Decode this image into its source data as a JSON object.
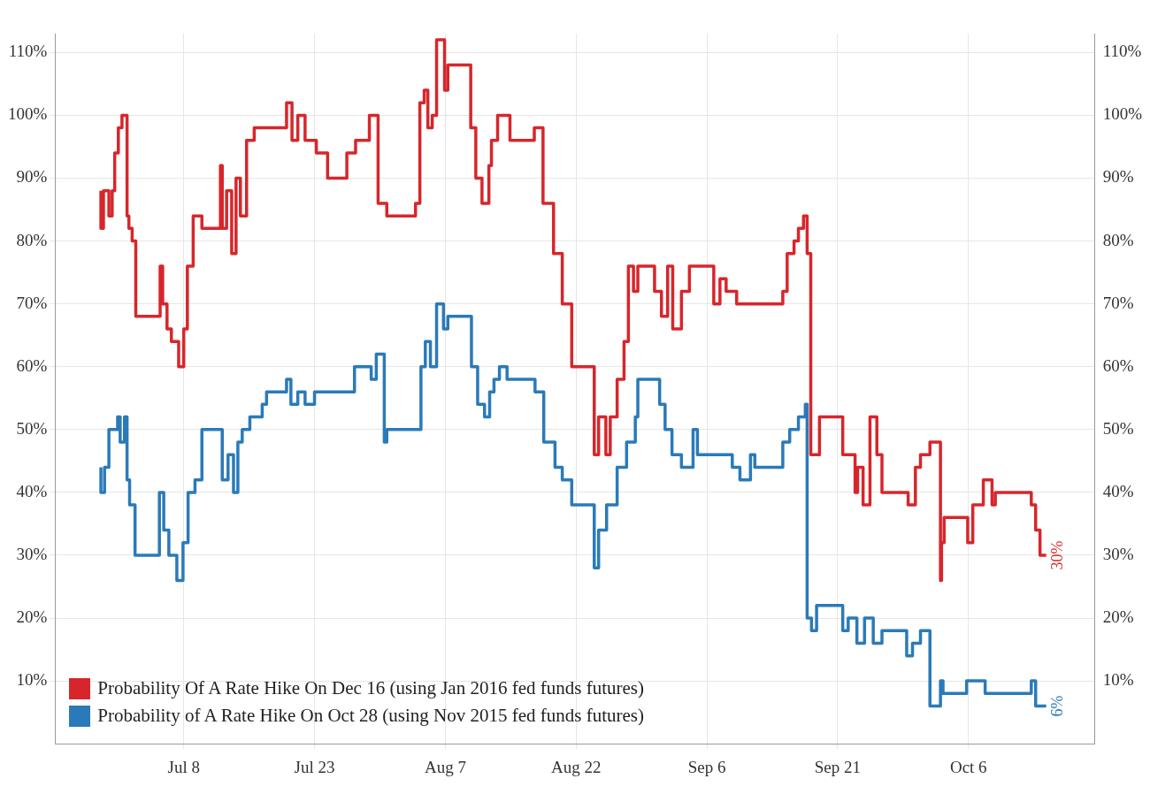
{
  "chart_data": {
    "type": "step",
    "marker": "none",
    "line_style": "solid",
    "grid": true,
    "legend": "bottom left",
    "xlim": [
      "2015-06-23T06:00",
      "2015-10-20T12:00"
    ],
    "xticks": [
      {
        "value": "2015-07-08",
        "label": "Jul 8"
      },
      {
        "value": "2015-07-23",
        "label": "Jul 23"
      },
      {
        "value": "2015-08-07",
        "label": "Aug 7"
      },
      {
        "value": "2015-08-22",
        "label": "Aug 22"
      },
      {
        "value": "2015-09-06",
        "label": "Sep 6"
      },
      {
        "value": "2015-09-21",
        "label": "Sep 21"
      },
      {
        "value": "2015-10-06",
        "label": "Oct 6"
      }
    ],
    "ylim": [
      0,
      113
    ],
    "yticks": [
      {
        "value": 10,
        "label": "10%"
      },
      {
        "value": 20,
        "label": "20%"
      },
      {
        "value": 30,
        "label": "30%"
      },
      {
        "value": 40,
        "label": "40%"
      },
      {
        "value": 50,
        "label": "50%"
      },
      {
        "value": 60,
        "label": "60%"
      },
      {
        "value": 70,
        "label": "70%"
      },
      {
        "value": 80,
        "label": "80%"
      },
      {
        "value": 90,
        "label": "90%"
      },
      {
        "value": 100,
        "label": "100%"
      },
      {
        "value": 110,
        "label": "110%"
      }
    ],
    "y2lim": [
      0,
      113
    ],
    "y2ticks": [
      {
        "value": 10,
        "label": "10%"
      },
      {
        "value": 20,
        "label": "20%"
      },
      {
        "value": 30,
        "label": "30%"
      },
      {
        "value": 40,
        "label": "40%"
      },
      {
        "value": 50,
        "label": "50%"
      },
      {
        "value": 60,
        "label": "60%"
      },
      {
        "value": 70,
        "label": "70%"
      },
      {
        "value": 80,
        "label": "80%"
      },
      {
        "value": 90,
        "label": "90%"
      },
      {
        "value": 100,
        "label": "100%"
      },
      {
        "value": 110,
        "label": "110%"
      }
    ],
    "series": [
      {
        "name": "Probability Of A Rate Hike On Dec 16 (using Jan 2016 fed funds futures)",
        "color": "#d7262b",
        "x": [
          "2015-06-28T12:00",
          "2015-06-28T19:00",
          "2015-06-29T10:00",
          "2015-06-29T19:00",
          "2015-06-30T02:00",
          "2015-06-30T12:00",
          "2015-06-30T22:00",
          "2015-07-01T12:00",
          "2015-07-01T17:00",
          "2015-07-02T02:00",
          "2015-07-02T12:00",
          "2015-07-05T07:00",
          "2015-07-05T14:00",
          "2015-07-06T02:00",
          "2015-07-06T14:00",
          "2015-07-07T10:00",
          "2015-07-08T00:00",
          "2015-07-08T10:00",
          "2015-07-09T02:00",
          "2015-07-09T14:00",
          "2015-07-10T02:00",
          "2015-07-12T05:00",
          "2015-07-12T10:00",
          "2015-07-12T22:00",
          "2015-07-13T12:00",
          "2015-07-14T00:00",
          "2015-07-14T12:00",
          "2015-07-15T05:00",
          "2015-07-16T02:00",
          "2015-07-19T19:00",
          "2015-07-20T10:00",
          "2015-07-21T02:00",
          "2015-07-21T22:00",
          "2015-07-23T05:00",
          "2015-07-24T12:00",
          "2015-07-26T17:00",
          "2015-07-27T17:00",
          "2015-07-29T07:00",
          "2015-07-30T07:00",
          "2015-07-31T07:00",
          "2015-08-03T14:00",
          "2015-08-04T02:00",
          "2015-08-04T14:00",
          "2015-08-05T00:00",
          "2015-08-05T12:00",
          "2015-08-06T00:00",
          "2015-08-06T22:00",
          "2015-08-07T07:00",
          "2015-08-09T22:00",
          "2015-08-10T12:00",
          "2015-08-11T05:00",
          "2015-08-12T00:00",
          "2015-08-12T07:00",
          "2015-08-13T00:00",
          "2015-08-14T10:00",
          "2015-08-17T05:00",
          "2015-08-18T05:00",
          "2015-08-19T10:00",
          "2015-08-20T10:00",
          "2015-08-21T12:00",
          "2015-08-24T02:00",
          "2015-08-24T14:00",
          "2015-08-25T10:00",
          "2015-08-25T22:00",
          "2015-08-26T17:00",
          "2015-08-27T12:00",
          "2015-08-28T00:00",
          "2015-08-28T14:00",
          "2015-08-29T02:00",
          "2015-08-31T00:00",
          "2015-08-31T19:00",
          "2015-09-01T12:00",
          "2015-09-02T02:00",
          "2015-09-03T02:00",
          "2015-09-04T00:00",
          "2015-09-06T19:00",
          "2015-09-07T12:00",
          "2015-09-08T05:00",
          "2015-09-09T10:00",
          "2015-09-14T17:00",
          "2015-09-15T05:00",
          "2015-09-16T00:00",
          "2015-09-16T12:00",
          "2015-09-17T02:00",
          "2015-09-17T12:00",
          "2015-09-17T22:00",
          "2015-09-18T05:00",
          "2015-09-18T22:00",
          "2015-09-21T14:00",
          "2015-09-23T00:00",
          "2015-09-23T07:00",
          "2015-09-23T22:00",
          "2015-09-24T17:00",
          "2015-09-25T12:00",
          "2015-09-26T02:00",
          "2015-09-29T02:00",
          "2015-09-29T22:00",
          "2015-09-30T12:00",
          "2015-10-01T14:00",
          "2015-10-02T19:00",
          "2015-10-02T22:00",
          "2015-10-03T05:00",
          "2015-10-05T22:00",
          "2015-10-06T12:00",
          "2015-10-07T17:00",
          "2015-10-08T17:00",
          "2015-10-09T02:00",
          "2015-10-13T05:00",
          "2015-10-13T17:00",
          "2015-10-14T05:00",
          "2015-10-14T22:00"
        ],
        "values": [
          88,
          82,
          88,
          84,
          88,
          94,
          98,
          100,
          84,
          82,
          80,
          68,
          76,
          70,
          66,
          64,
          60,
          66,
          76,
          84,
          84,
          82,
          92,
          82,
          88,
          78,
          90,
          84,
          96,
          98,
          102,
          96,
          100,
          96,
          94,
          90,
          94,
          96,
          100,
          86,
          84,
          86,
          102,
          104,
          98,
          100,
          112,
          104,
          108,
          98,
          90,
          86,
          92,
          96,
          100,
          96,
          98,
          86,
          78,
          70,
          60,
          46,
          52,
          46,
          52,
          58,
          64,
          76,
          72,
          76,
          72,
          68,
          76,
          66,
          72,
          76,
          70,
          74,
          72,
          70,
          72,
          78,
          80,
          82,
          84,
          78,
          46,
          46,
          52,
          46,
          40,
          44,
          38,
          52,
          46,
          40,
          38,
          44,
          46,
          48,
          26,
          32,
          36,
          32,
          38,
          42,
          38,
          40,
          38,
          34,
          30
        ]
      },
      {
        "name": "Probability of A Rate Hike On Oct 28 (using Nov 2015 fed funds futures)",
        "color": "#2a7ab9",
        "x": [
          "2015-06-28T12:00",
          "2015-06-28T22:00",
          "2015-06-29T10:00",
          "2015-06-30T10:00",
          "2015-06-30T17:00",
          "2015-07-01T05:00",
          "2015-07-01T12:00",
          "2015-07-01T19:00",
          "2015-07-02T10:00",
          "2015-07-05T05:00",
          "2015-07-05T17:00",
          "2015-07-06T07:00",
          "2015-07-07T05:00",
          "2015-07-07T22:00",
          "2015-07-08T12:00",
          "2015-07-09T07:00",
          "2015-07-10T02:00",
          "2015-07-12T10:00",
          "2015-07-13T02:00",
          "2015-07-13T17:00",
          "2015-07-14T05:00",
          "2015-07-14T17:00",
          "2015-07-15T14:00",
          "2015-07-17T00:00",
          "2015-07-17T12:00",
          "2015-07-19T19:00",
          "2015-07-20T07:00",
          "2015-07-21T02:00",
          "2015-07-21T22:00",
          "2015-07-23T00:00",
          "2015-07-27T14:00",
          "2015-07-29T12:00",
          "2015-07-30T02:00",
          "2015-07-31T00:00",
          "2015-07-31T07:00",
          "2015-08-04T05:00",
          "2015-08-04T17:00",
          "2015-08-05T07:00",
          "2015-08-06T00:00",
          "2015-08-06T19:00",
          "2015-08-07T07:00",
          "2015-08-10T00:00",
          "2015-08-10T17:00",
          "2015-08-11T12:00",
          "2015-08-12T02:00",
          "2015-08-12T14:00",
          "2015-08-13T05:00",
          "2015-08-14T02:00",
          "2015-08-17T07:00",
          "2015-08-18T07:00",
          "2015-08-19T14:00",
          "2015-08-20T10:00",
          "2015-08-21T12:00",
          "2015-08-24T02:00",
          "2015-08-24T14:00",
          "2015-08-25T12:00",
          "2015-08-26T17:00",
          "2015-08-27T19:00",
          "2015-08-28T19:00",
          "2015-08-29T02:00",
          "2015-08-31T14:00",
          "2015-09-01T05:00",
          "2015-09-02T00:00",
          "2015-09-03T02:00",
          "2015-09-04T10:00",
          "2015-09-04T22:00",
          "2015-09-08T22:00",
          "2015-09-09T19:00",
          "2015-09-11T00:00",
          "2015-09-11T12:00",
          "2015-09-14T17:00",
          "2015-09-15T12:00",
          "2015-09-16T12:00",
          "2015-09-17T07:00",
          "2015-09-17T12:00",
          "2015-09-18T00:00",
          "2015-09-18T14:00",
          "2015-09-21T14:00",
          "2015-09-22T05:00",
          "2015-09-23T05:00",
          "2015-09-24T02:00",
          "2015-09-25T02:00",
          "2015-09-26T02:00",
          "2015-09-28T22:00",
          "2015-09-29T14:00",
          "2015-09-30T12:00",
          "2015-10-01T14:00",
          "2015-10-02T19:00",
          "2015-10-03T02:00",
          "2015-10-05T19:00",
          "2015-10-07T22:00",
          "2015-10-13T05:00",
          "2015-10-13T17:00",
          "2015-10-14T10:00",
          "2015-10-14T22:00"
        ],
        "values": [
          44,
          40,
          44,
          50,
          52,
          48,
          52,
          42,
          38,
          30,
          40,
          34,
          30,
          26,
          32,
          40,
          42,
          50,
          42,
          46,
          40,
          48,
          50,
          52,
          54,
          56,
          58,
          54,
          56,
          54,
          56,
          60,
          58,
          62,
          48,
          50,
          60,
          64,
          60,
          70,
          66,
          68,
          60,
          54,
          52,
          56,
          58,
          60,
          58,
          56,
          48,
          44,
          42,
          38,
          28,
          34,
          38,
          44,
          48,
          52,
          58,
          54,
          50,
          46,
          44,
          50,
          46,
          44,
          42,
          46,
          44,
          48,
          50,
          52,
          54,
          20,
          18,
          22,
          18,
          20,
          16,
          20,
          16,
          18,
          14,
          16,
          18,
          6,
          10,
          8,
          10,
          8,
          10,
          6,
          6
        ]
      }
    ],
    "annotations": [
      {
        "text": "30%",
        "x": "2015-10-14T22:00",
        "y": 30
      },
      {
        "text": "6%",
        "x": "2015-10-14T22:00",
        "y": 6
      }
    ]
  }
}
